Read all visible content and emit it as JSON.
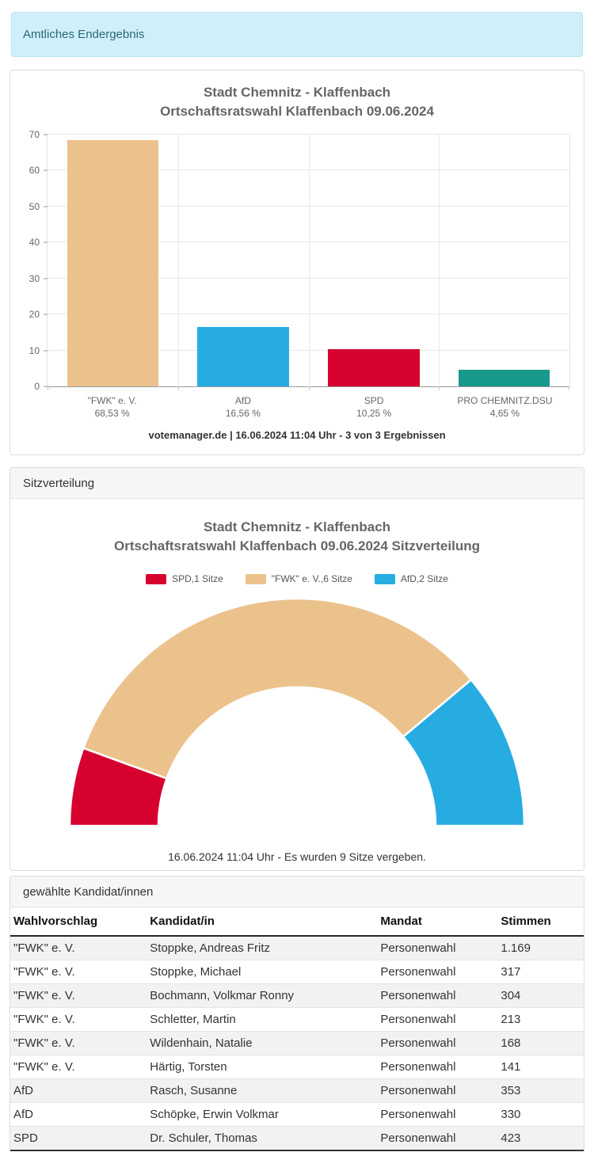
{
  "alert": {
    "text": "Amtliches Endergebnis"
  },
  "sections": {
    "seats_header": "Sitzverteilung",
    "candidates_header": "gewählte Kandidat/innen"
  },
  "chart_data": [
    {
      "type": "bar",
      "title_line1": "Stadt Chemnitz - Klaffenbach",
      "title_line2": "Ortschaftsratswahl Klaffenbach 09.06.2024",
      "categories": [
        "\"FWK\" e. V.",
        "AfD",
        "SPD",
        "PRO CHEMNITZ.DSU"
      ],
      "values": [
        68.53,
        16.56,
        10.25,
        4.65
      ],
      "value_labels": [
        "68,53 %",
        "16,56 %",
        "10,25 %",
        "4,65 %"
      ],
      "colors": [
        "#ecc28c",
        "#27ace2",
        "#d6012f",
        "#18998b"
      ],
      "xlabel": "",
      "ylabel": "",
      "ylim": [
        0,
        70
      ],
      "ytick_step": 10,
      "grid": true,
      "legend_position": "none",
      "footer": "votemanager.de | 16.06.2024 11:04 Uhr - 3 von 3 Ergebnissen"
    },
    {
      "type": "pie",
      "subtype": "half-donut",
      "title_line1": "Stadt Chemnitz - Klaffenbach",
      "title_line2": "Ortschaftsratswahl Klaffenbach 09.06.2024 Sitzverteilung",
      "legend_position": "top",
      "legend": [
        {
          "label": "SPD,1 Sitze",
          "color": "#d6012f"
        },
        {
          "label": "\"FWK\" e. V.,6 Sitze",
          "color": "#ecc28c"
        },
        {
          "label": "AfD,2 Sitze",
          "color": "#27ace2"
        }
      ],
      "segments": [
        {
          "name": "SPD",
          "seats": 1,
          "color": "#d6012f"
        },
        {
          "name": "\"FWK\" e. V.",
          "seats": 6,
          "color": "#ecc28c"
        },
        {
          "name": "AfD",
          "seats": 2,
          "color": "#27ace2"
        }
      ],
      "total_seats": 9,
      "footer": "16.06.2024 11:04 Uhr - Es wurden 9 Sitze vergeben."
    }
  ],
  "candidates_table": {
    "columns": [
      "Wahlvorschlag",
      "Kandidat/in",
      "Mandat",
      "Stimmen"
    ],
    "rows": [
      [
        "\"FWK\" e. V.",
        "Stoppke, Andreas Fritz",
        "Personenwahl",
        "1.169"
      ],
      [
        "\"FWK\" e. V.",
        "Stoppke, Michael",
        "Personenwahl",
        "317"
      ],
      [
        "\"FWK\" e. V.",
        "Bochmann, Volkmar Ronny",
        "Personenwahl",
        "304"
      ],
      [
        "\"FWK\" e. V.",
        "Schletter, Martin",
        "Personenwahl",
        "213"
      ],
      [
        "\"FWK\" e. V.",
        "Wildenhain, Natalie",
        "Personenwahl",
        "168"
      ],
      [
        "\"FWK\" e. V.",
        "Härtig, Torsten",
        "Personenwahl",
        "141"
      ],
      [
        "AfD",
        "Rasch, Susanne",
        "Personenwahl",
        "353"
      ],
      [
        "AfD",
        "Schöpke, Erwin Volkmar",
        "Personenwahl",
        "330"
      ],
      [
        "SPD",
        "Dr. Schuler, Thomas",
        "Personenwahl",
        "423"
      ]
    ]
  }
}
